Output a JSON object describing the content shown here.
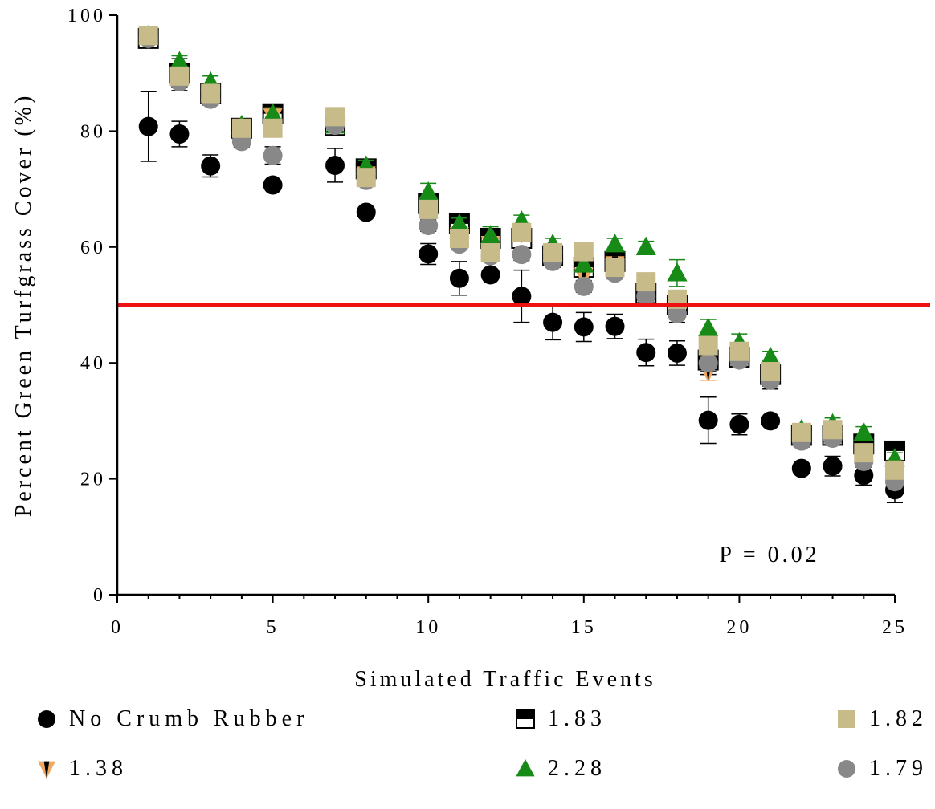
{
  "chart_data": {
    "type": "scatter",
    "xlabel": "Simulated Traffic Events",
    "ylabel": "Percent Green Turfgrass Cover (%)",
    "xlim": [
      0,
      25
    ],
    "ylim": [
      0,
      100
    ],
    "xticks": [
      0,
      5,
      10,
      15,
      20,
      25
    ],
    "yticks": [
      0,
      20,
      40,
      60,
      80,
      100
    ],
    "grid": false,
    "legend_position": "bottom",
    "reference_line": {
      "y": 50,
      "color": "#ee1111"
    },
    "annotation": "P = 0.02",
    "series": [
      {
        "name": "No Crumb Rubber",
        "marker": "circle",
        "color": "#000000",
        "x": [
          1,
          2,
          3,
          5,
          7,
          8,
          10,
          11,
          12,
          13,
          14,
          15,
          16,
          17,
          18,
          19,
          20,
          21,
          22,
          23,
          24,
          25
        ],
        "y": [
          80.8,
          79.5,
          74,
          70.7,
          74.1,
          66,
          58.8,
          54.6,
          55.2,
          51.5,
          47,
          46.2,
          46.3,
          41.8,
          41.7,
          30.1,
          29.4,
          30,
          21.8,
          22.2,
          20.6,
          18.1
        ],
        "err": [
          6,
          2.2,
          1.9,
          0,
          2.9,
          0,
          1.8,
          2.9,
          0,
          4.5,
          3,
          2.5,
          2.1,
          2.3,
          2.1,
          4,
          1.8,
          0,
          0,
          1.7,
          1.7,
          2.2
        ]
      },
      {
        "name": "1.83",
        "marker": "half-square",
        "color": "#000000",
        "x": [
          1,
          2,
          3,
          4,
          5,
          7,
          8,
          10,
          11,
          12,
          13,
          14,
          15,
          16,
          17,
          18,
          19,
          20,
          21,
          22,
          23,
          24,
          25
        ],
        "y": [
          96,
          90,
          86.5,
          80.5,
          83,
          81,
          73.5,
          67.5,
          64,
          61.5,
          61.5,
          58.5,
          56.5,
          57.5,
          52,
          50,
          40.5,
          41,
          38,
          27.5,
          27.5,
          26,
          24.8
        ],
        "err": [
          1.5,
          2.5,
          1.5,
          1.5,
          1.5,
          1.5,
          1.5,
          1.5,
          1.5,
          1.5,
          1.5,
          1.5,
          1.5,
          2,
          1.5,
          2.5,
          2.5,
          1.5,
          2.5,
          1.5,
          1.5,
          1.5,
          1.5
        ]
      },
      {
        "name": "1.82",
        "marker": "square",
        "color": "#c8bb8a",
        "x": [
          1,
          2,
          3,
          4,
          5,
          7,
          8,
          10,
          11,
          12,
          13,
          14,
          15,
          16,
          17,
          18,
          19,
          20,
          21,
          22,
          23,
          24,
          25
        ],
        "y": [
          96.5,
          89.5,
          86.5,
          80.5,
          80.5,
          82.5,
          72,
          66.5,
          61.5,
          59,
          62.5,
          59,
          59.2,
          56.5,
          54,
          51,
          43,
          42,
          38.5,
          28,
          28.5,
          24.5,
          21.5
        ],
        "err": [
          1,
          1.5,
          1,
          1,
          1,
          1,
          1,
          1,
          1,
          1,
          1.5,
          1,
          1,
          1,
          1,
          1.5,
          1.5,
          1.5,
          1,
          1,
          1,
          1,
          1
        ]
      },
      {
        "name": "1.38",
        "marker": "triangle-down",
        "color": "#f0a860",
        "x": [
          1,
          2,
          3,
          4,
          5,
          7,
          8,
          10,
          11,
          12,
          13,
          14,
          15,
          16,
          17,
          18,
          19,
          20,
          21,
          22,
          23,
          24,
          25
        ],
        "y": [
          96,
          89.5,
          86,
          80.5,
          82.5,
          82,
          72.5,
          66,
          62,
          60.5,
          62.5,
          58,
          55,
          57,
          53,
          49,
          38.5,
          41,
          37.5,
          28,
          28,
          24,
          20
        ],
        "err": [
          1,
          1.5,
          1,
          1,
          1.5,
          1,
          1,
          1,
          1,
          1,
          1,
          1,
          1,
          1,
          1,
          1.5,
          1.5,
          1,
          1,
          1,
          1,
          1,
          1
        ]
      },
      {
        "name": "2.28",
        "marker": "triangle",
        "color": "#178a17",
        "x": [
          1,
          2,
          3,
          4,
          5,
          7,
          8,
          10,
          11,
          12,
          13,
          14,
          15,
          16,
          17,
          18,
          19,
          20,
          21,
          22,
          23,
          24,
          25
        ],
        "y": [
          96.5,
          92,
          88.5,
          81,
          83,
          81,
          74,
          69.5,
          64,
          62,
          64.5,
          60.5,
          57,
          60.5,
          60,
          55.5,
          46,
          43.5,
          41,
          28.5,
          29.5,
          28,
          23.5
        ],
        "err": [
          1,
          1,
          1,
          1,
          1,
          1,
          1,
          1.5,
          1,
          1.5,
          1,
          1,
          1,
          1,
          1,
          2.3,
          1.5,
          1.5,
          1,
          1,
          1,
          1,
          1
        ]
      },
      {
        "name": "1.79",
        "marker": "circle",
        "color": "#888888",
        "x": [
          1,
          2,
          3,
          4,
          5,
          7,
          8,
          10,
          11,
          12,
          13,
          14,
          15,
          16,
          17,
          18,
          19,
          20,
          21,
          22,
          23,
          24,
          25
        ],
        "y": [
          96,
          88.5,
          85.5,
          78.2,
          75.8,
          81,
          71.5,
          63.7,
          60.5,
          58.5,
          58.7,
          57.5,
          53.2,
          55.5,
          51.5,
          48.5,
          40,
          40.5,
          37,
          26.5,
          27,
          23,
          19.5
        ],
        "err": [
          1,
          1.5,
          1,
          1,
          1.5,
          1,
          1,
          1,
          1,
          1,
          1,
          1,
          1,
          1,
          1,
          1.5,
          1.5,
          1,
          1,
          1,
          1,
          1,
          1
        ]
      }
    ]
  }
}
